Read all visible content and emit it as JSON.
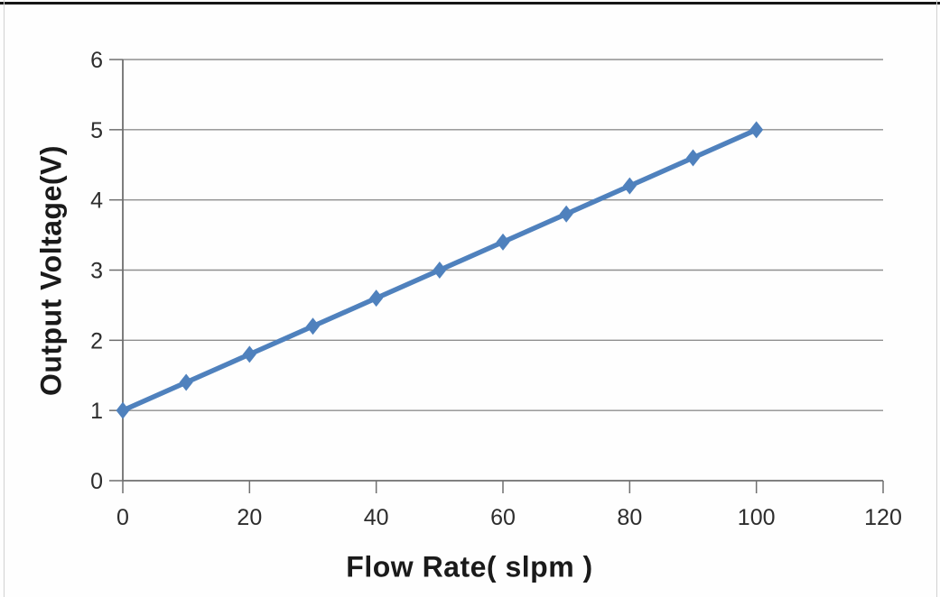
{
  "page": {
    "background": "#fefefe",
    "top_border_color": "#161616",
    "edge_line_color": "#d2d2d2"
  },
  "chart_data": {
    "type": "line",
    "title": "",
    "xlabel": "Flow Rate( slpm )",
    "ylabel": "Output Voltage(V)",
    "x": [
      0,
      10,
      20,
      30,
      40,
      50,
      60,
      70,
      80,
      90,
      100
    ],
    "series": [
      {
        "name": "Output Voltage",
        "values": [
          1.0,
          1.4,
          1.8,
          2.2,
          2.6,
          3.0,
          3.4,
          3.8,
          4.2,
          4.6,
          5.0
        ],
        "color": "#4f81bd",
        "marker": "diamond",
        "line_width": 5.5
      }
    ],
    "xlim": [
      0,
      120
    ],
    "ylim": [
      0,
      6
    ],
    "x_ticks": [
      0,
      20,
      40,
      60,
      80,
      100,
      120
    ],
    "y_ticks": [
      0,
      1,
      2,
      3,
      4,
      5,
      6
    ],
    "grid": "horizontal",
    "legend": "none",
    "gridline_color": "#8f8f8f",
    "axis_color": "#6f6f6f",
    "tick_label_color": "#2d2d2d",
    "tick_font_size": 25
  }
}
